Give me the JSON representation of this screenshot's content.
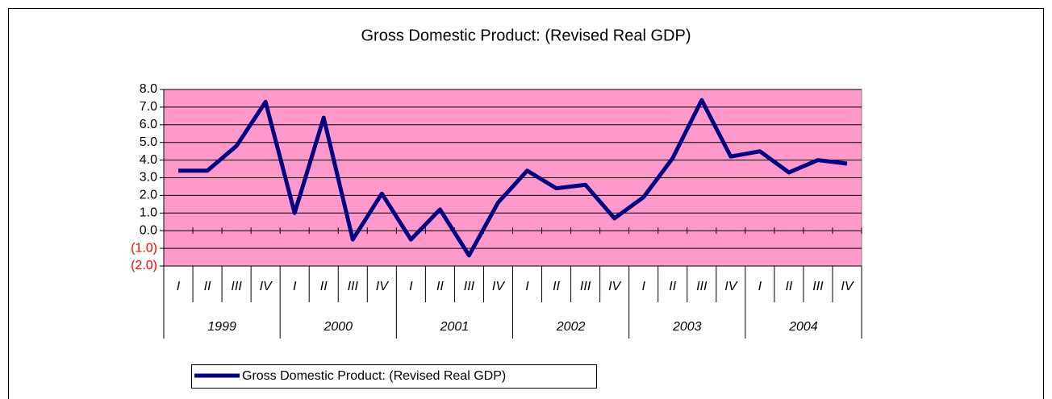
{
  "chart_data": {
    "type": "line",
    "title": "Gross Domestic Product: (Revised Real GDP)",
    "categories": [
      "I",
      "II",
      "III",
      "IV",
      "I",
      "II",
      "III",
      "IV",
      "I",
      "II",
      "III",
      "IV",
      "I",
      "II",
      "III",
      "IV",
      "I",
      "II",
      "III",
      "IV",
      "I",
      "II",
      "III",
      "IV"
    ],
    "groups": [
      "1999",
      "2000",
      "2001",
      "2002",
      "2003",
      "2004"
    ],
    "series": [
      {
        "name": "Gross Domestic Product: (Revised Real GDP)",
        "color": "#000080",
        "values": [
          3.4,
          3.4,
          4.8,
          7.3,
          1.0,
          6.4,
          -0.5,
          2.1,
          -0.5,
          1.2,
          -1.4,
          1.6,
          3.4,
          2.4,
          2.6,
          0.7,
          1.9,
          4.1,
          7.4,
          4.2,
          4.5,
          3.3,
          4.0,
          3.8
        ]
      }
    ],
    "ylim": [
      -2,
      8
    ],
    "yticks": [
      {
        "value": -2,
        "label": "(2.0)"
      },
      {
        "value": -1,
        "label": "(1.0)"
      },
      {
        "value": 0,
        "label": "0.0"
      },
      {
        "value": 1,
        "label": "1.0"
      },
      {
        "value": 2,
        "label": "2.0"
      },
      {
        "value": 3,
        "label": "3.0"
      },
      {
        "value": 4,
        "label": "4.0"
      },
      {
        "value": 5,
        "label": "5.0"
      },
      {
        "value": 6,
        "label": "6.0"
      },
      {
        "value": 7,
        "label": "7.0"
      },
      {
        "value": 8,
        "label": "8.0"
      }
    ],
    "negative_label_color": "#ff0000",
    "plot_background": "#ff99cc",
    "grid": true
  }
}
